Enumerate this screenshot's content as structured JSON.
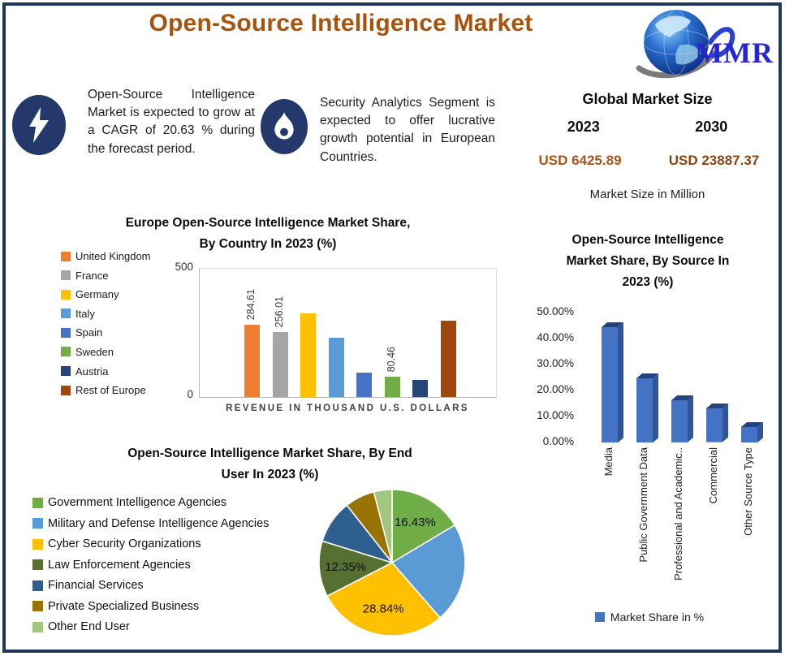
{
  "header": {
    "title": "Open-Source Intelligence Market",
    "logo_text": "MMR"
  },
  "callouts": [
    {
      "icon": "lightning-icon",
      "text": "Open-Source Intelligence Market is expected to grow at a CAGR of 20.63 % during the forecast period."
    },
    {
      "icon": "flame-icon",
      "text": "Security Analytics Segment is expected to offer lucrative growth potential in European Countries."
    }
  ],
  "market_size": {
    "heading": "Global Market Size",
    "years": [
      "2023",
      "2030"
    ],
    "values": [
      "USD 6425.89",
      "USD 23887.37"
    ],
    "note": "Market Size in Million"
  },
  "colors": {
    "frame": "#22365c",
    "title_accent": "#a9520b",
    "icon_circle": "#24386b",
    "value_2023": "#a5571b",
    "value_2030": "#8c4310",
    "source_bar_front": "#4472c4",
    "source_bar_top": "#24437c",
    "source_bar_side": "#2f5597"
  },
  "chart_data": [
    {
      "id": "europe_bar",
      "type": "bar",
      "title_lines": [
        "Europe Open-Source Intelligence Market Share,",
        "By Country In 2023 (%)"
      ],
      "categories": [
        "United Kingdom",
        "France",
        "Germany",
        "Italy",
        "Spain",
        "Sweden",
        "Austria",
        "Rest of Europe"
      ],
      "values": [
        284.61,
        256.01,
        330,
        235,
        95,
        80.46,
        66,
        300
      ],
      "data_labels": [
        "284.61",
        "256.01",
        null,
        null,
        null,
        "80.46",
        null,
        null
      ],
      "colors": [
        "#ED7D31",
        "#A5A5A5",
        "#FFC000",
        "#5B9BD5",
        "#4472C4",
        "#70AD47",
        "#264478",
        "#9E480E"
      ],
      "ylim": [
        0,
        500
      ],
      "yticks": [
        "500",
        "0"
      ],
      "xlabel": "REVENUE IN THOUSAND U.S. DOLLARS",
      "legend_position": "left",
      "grid": false
    },
    {
      "id": "source_bar",
      "type": "bar",
      "style": "3d",
      "title_lines": [
        "Open-Source Intelligence",
        "Market Share, By Source In",
        "2023 (%)"
      ],
      "categories": [
        "Media",
        "Public Government Data",
        "Professional and Academic..",
        "Commercial",
        "Other Source Type"
      ],
      "values": [
        44.5,
        24.8,
        16.2,
        13.0,
        6.0
      ],
      "ylim": [
        0,
        50
      ],
      "yticks": [
        "50.00%",
        "40.00%",
        "30.00%",
        "20.00%",
        "10.00%",
        "0.00%"
      ],
      "bar_color": "#4472C4",
      "legend": "Market Share in %",
      "legend_position": "bottom",
      "grid": false
    },
    {
      "id": "end_user_pie",
      "type": "pie",
      "title_lines": [
        "Open-Source Intelligence Market Share, By End",
        "User In 2023 (%)"
      ],
      "labels": [
        "Government Intelligence Agencies",
        "Military and Defense Intelligence Agencies",
        "Cyber Security Organizations",
        "Law Enforcement Agencies",
        "Financial Services",
        "Private Specialized Business",
        "Other End User"
      ],
      "values": [
        16.43,
        22.16,
        28.84,
        12.35,
        9.6,
        6.6,
        4.02
      ],
      "shown_labels": [
        "16.43%",
        null,
        "28.84%",
        "12.35%",
        null,
        null,
        null
      ],
      "colors": [
        "#70AD47",
        "#5B9BD5",
        "#FFC000",
        "#557030",
        "#2E5F8F",
        "#997300",
        "#A2C57F"
      ],
      "legend_position": "left"
    }
  ]
}
